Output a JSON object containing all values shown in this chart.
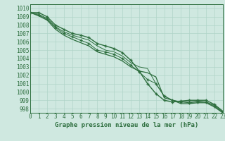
{
  "title": "Graphe pression niveau de la mer (hPa)",
  "bg_color": "#cfe8e0",
  "grid_color": "#b0d4c8",
  "line_colors": [
    "#2d6e3e",
    "#2d6e3e",
    "#2d6e3e",
    "#2d6e3e"
  ],
  "xlim": [
    0,
    23
  ],
  "ylim": [
    997.5,
    1010.5
  ],
  "xticks": [
    0,
    1,
    2,
    3,
    4,
    5,
    6,
    7,
    8,
    9,
    10,
    11,
    12,
    13,
    14,
    15,
    16,
    17,
    18,
    19,
    20,
    21,
    22,
    23
  ],
  "yticks": [
    998,
    999,
    1000,
    1001,
    1002,
    1003,
    1004,
    1005,
    1006,
    1007,
    1008,
    1009,
    1010
  ],
  "series": [
    [
      1009.5,
      1009.5,
      1009.0,
      1008.0,
      1007.5,
      1007.0,
      1006.8,
      1006.5,
      1005.8,
      1005.5,
      1005.2,
      1004.7,
      1003.8,
      1002.5,
      1001.0,
      999.8,
      999.0,
      998.8,
      998.9,
      999.0,
      999.0,
      999.0,
      998.5,
      997.7
    ],
    [
      1009.5,
      1009.3,
      1008.8,
      1007.8,
      1007.2,
      1006.8,
      1006.5,
      1006.2,
      1005.5,
      1005.0,
      1004.8,
      1004.3,
      1003.5,
      1003.0,
      1002.8,
      1001.0,
      999.5,
      999.0,
      998.8,
      998.8,
      998.9,
      998.8,
      998.4,
      997.6
    ],
    [
      1009.5,
      1009.2,
      1008.7,
      1007.7,
      1007.0,
      1006.6,
      1006.2,
      1005.8,
      1005.0,
      1004.8,
      1004.5,
      1004.0,
      1003.2,
      1002.4,
      1001.5,
      1001.0,
      999.5,
      999.0,
      998.8,
      998.7,
      998.8,
      998.8,
      998.3,
      997.5
    ],
    [
      1009.5,
      1009.1,
      1008.6,
      1007.5,
      1006.8,
      1006.3,
      1005.9,
      1005.5,
      1004.8,
      1004.5,
      1004.2,
      1003.7,
      1003.0,
      1002.5,
      1002.3,
      1001.8,
      999.3,
      999.0,
      998.6,
      998.6,
      998.7,
      998.7,
      998.2,
      997.5
    ]
  ],
  "marked_series": [
    0,
    2
  ],
  "font_color": "#2d6e3e",
  "tick_fontsize": 5.5,
  "label_fontsize": 6.5,
  "spine_color": "#2d6e3e"
}
